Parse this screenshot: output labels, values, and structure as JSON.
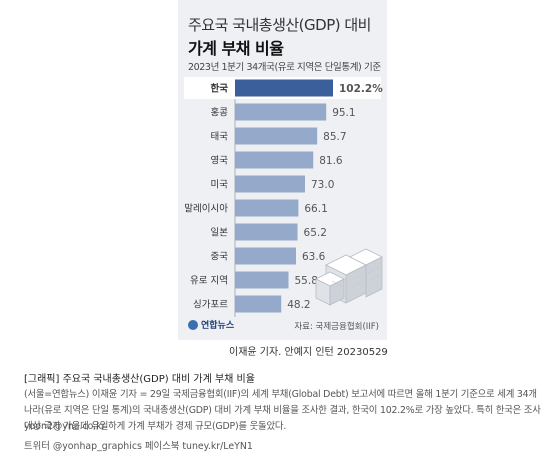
{
  "chart_title_line1": "주요국 국내총생산(GDP) 대비",
  "chart_title_line2": "가계 부채 비율",
  "chart_subtitle": "2023년 1분기 34개국(유로 지역은 단일통계) 기준",
  "logo_text": "연합뉴스",
  "source": "자료: 국제금융협회(IIF)",
  "credit": "이재윤 기자. 안예지 인턴  20230529",
  "caption": {
    "title": "[그래픽] 주요국 국내총생산(GDP) 대비 가계 부채 비율",
    "body": "(서울=연합뉴스) 이재윤 기자 = 29일 국제금융협회(IIF)의 세계 부채(Global Debt) 보고서에 따르면 올해 1분기 기준으로 세계 34개 나라(유로 지역은 단일 통계)의 국내총생산(GDP) 대비 가계 부채 비율을 조사한 결과, 한국이 102.2%로 가장 높았다. 특히 한국은 조사 대상 국가 가운데 유일하게 가계 부채가 경제 규모(GDP)를 웃돌았다.",
    "email": "yoon2@yna.co.kr",
    "social": "트위터 @yonhap_graphics 페이스북 tuney.kr/LeYN1"
  },
  "colors": {
    "highlight_bar": "#3a5f9a",
    "bar": "#95a9ca",
    "background": "#eef0f4",
    "highlight_row": "#ffffff"
  },
  "chart_data": {
    "type": "bar",
    "orientation": "horizontal",
    "categories": [
      "한국",
      "홍콩",
      "태국",
      "영국",
      "미국",
      "말레이시아",
      "일본",
      "중국",
      "유로 지역",
      "싱가포르"
    ],
    "values": [
      102.2,
      95.1,
      85.7,
      81.6,
      73.0,
      66.1,
      65.2,
      63.6,
      55.8,
      48.2
    ],
    "value_labels": [
      "102.2%",
      "95.1",
      "85.7",
      "81.6",
      "73.0",
      "66.1",
      "65.2",
      "63.6",
      "55.8",
      "48.2"
    ],
    "highlight_index": 0
  }
}
